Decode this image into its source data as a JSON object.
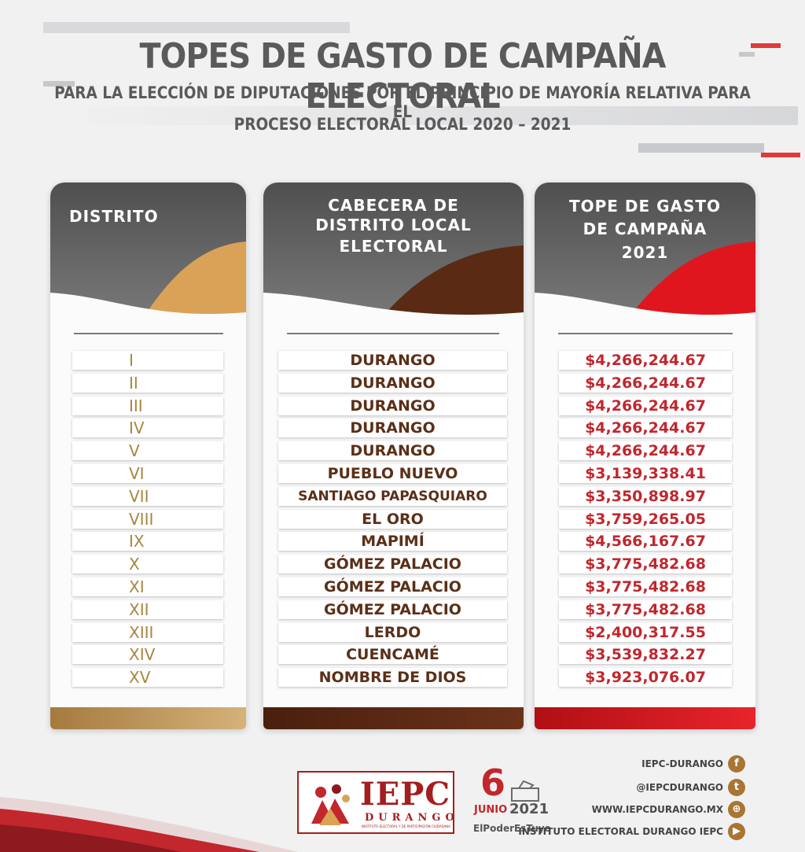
{
  "title": "TOPES DE GASTO DE CAMPAÑA ELECTORAL",
  "subtitle_line1": "PARA LA ELECCIÓN DE DIPUTACIONES POR EL PRINCIPIO DE MAYORÍA RELATIVA PARA EL",
  "subtitle_line2": "PROCESO ELECTORAL LOCAL 2020 – 2021",
  "columns": {
    "distrito": "DISTRITO",
    "cabecera_1": "CABECERA DE",
    "cabecera_2": "DISTRITO LOCAL",
    "cabecera_3": "ELECTORAL",
    "tope_1": "TOPE DE GASTO",
    "tope_2": "DE CAMPAÑA",
    "tope_3": "2021"
  },
  "rows": [
    {
      "distrito": "I",
      "cabecera": "DURANGO",
      "tope": "$4,266,244.67"
    },
    {
      "distrito": "II",
      "cabecera": "DURANGO",
      "tope": "$4,266,244.67"
    },
    {
      "distrito": "III",
      "cabecera": "DURANGO",
      "tope": "$4,266,244.67"
    },
    {
      "distrito": "IV",
      "cabecera": "DURANGO",
      "tope": "$4,266,244.67"
    },
    {
      "distrito": "V",
      "cabecera": "DURANGO",
      "tope": "$4,266,244.67"
    },
    {
      "distrito": "VI",
      "cabecera": "PUEBLO NUEVO",
      "tope": "$3,139,338.41"
    },
    {
      "distrito": "VII",
      "cabecera": "SANTIAGO PAPASQUIARO",
      "tope": "$3,350,898.97"
    },
    {
      "distrito": "VIII",
      "cabecera": "EL ORO",
      "tope": "$3,759,265.05"
    },
    {
      "distrito": "IX",
      "cabecera": "MAPIMÍ",
      "tope": "$4,566,167.67"
    },
    {
      "distrito": "X",
      "cabecera": "GÓMEZ PALACIO",
      "tope": "$3,775,482.68"
    },
    {
      "distrito": "XI",
      "cabecera": "GÓMEZ PALACIO",
      "tope": "$3,775,482.68"
    },
    {
      "distrito": "XII",
      "cabecera": "GÓMEZ PALACIO",
      "tope": "$3,775,482.68"
    },
    {
      "distrito": "XIII",
      "cabecera": "LERDO",
      "tope": "$2,400,317.55"
    },
    {
      "distrito": "XIV",
      "cabecera": "CUENCAMÉ",
      "tope": "$3,539,832.27"
    },
    {
      "distrito": "XV",
      "cabecera": "NOMBRE DE DIOS",
      "tope": "$3,923,076.07"
    }
  ],
  "colors": {
    "gold": "#d9a257",
    "brown": "#5a2a14",
    "red": "#e0161e",
    "distrito_text": "#a8863f",
    "cabecera_text": "#5b2f17",
    "tope_text": "#c0272d"
  },
  "logo": {
    "name": "IEPC",
    "sub": "DURANGO",
    "tiny": "INSTITUTO ELECTORAL Y DE PARTICIPACIÓN CIUDADANA"
  },
  "date": {
    "day": "6",
    "month": "JUNIO",
    "year": "2021",
    "hashtag": "ElPoderEsTuyo"
  },
  "social": [
    {
      "label": "IEPC-DURANGO",
      "icon": "facebook-icon",
      "glyph": "f"
    },
    {
      "label": "@IEPCDURANGO",
      "icon": "twitter-icon",
      "glyph": "t"
    },
    {
      "label": "WWW.IEPCDURANGO.MX",
      "icon": "web-icon",
      "glyph": "⊕"
    },
    {
      "label": "INSTITUTO ELECTORAL DURANGO IEPC",
      "icon": "youtube-icon",
      "glyph": "▶"
    }
  ]
}
